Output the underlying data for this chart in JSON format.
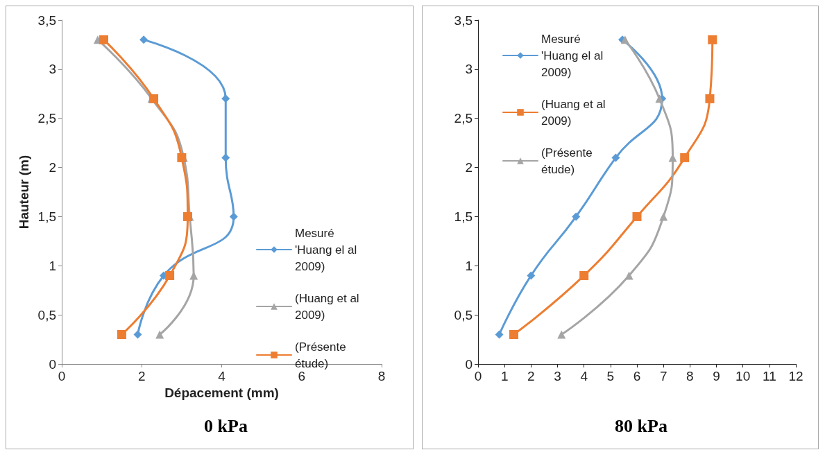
{
  "chart_data": [
    {
      "type": "line",
      "title": "0 kPa",
      "xlabel": "Dépacement (mm)",
      "ylabel": "Hauteur (m)",
      "xlim": [
        0,
        8
      ],
      "xticks": [
        0,
        2,
        4,
        6,
        8
      ],
      "ylim": [
        0,
        3.5
      ],
      "yticks": [
        0,
        {
          "value": 0.5,
          "label": "0,5"
        },
        1,
        {
          "value": 1.5,
          "label": "1,5"
        },
        2,
        {
          "value": 2.5,
          "label": "2,5"
        },
        3,
        {
          "value": 3.5,
          "label": "3,5"
        }
      ],
      "grid": false,
      "legend": "right",
      "series": [
        {
          "name": "Mesuré 'Huang el al 2009)",
          "color": "#5b9bd5",
          "marker": "diamond",
          "x": [
            2.05,
            4.1,
            4.1,
            4.3,
            2.55,
            1.9
          ],
          "values": [
            3.3,
            2.7,
            2.1,
            1.5,
            0.9,
            0.3
          ]
        },
        {
          "name": "(Huang et al 2009)",
          "color": "#a5a5a5",
          "marker": "triangle",
          "x": [
            0.9,
            2.25,
            3.05,
            3.2,
            3.3,
            2.45
          ],
          "values": [
            3.3,
            2.7,
            2.1,
            1.5,
            0.9,
            0.3
          ]
        },
        {
          "name": "(Présente étude)",
          "color": "#ed7d31",
          "marker": "square",
          "x": [
            1.05,
            2.3,
            3.0,
            3.15,
            2.7,
            1.5
          ],
          "values": [
            3.3,
            2.7,
            2.1,
            1.5,
            0.9,
            0.3
          ]
        }
      ]
    },
    {
      "type": "line",
      "title": "80 kPa",
      "xlim": [
        0,
        12
      ],
      "xticks": [
        0,
        1,
        2,
        3,
        4,
        5,
        6,
        7,
        8,
        9,
        10,
        11,
        12
      ],
      "ylim": [
        0,
        3.5
      ],
      "yticks": [
        0,
        {
          "value": 0.5,
          "label": "0,5"
        },
        1,
        {
          "value": 1.5,
          "label": "1,5"
        },
        2,
        {
          "value": 2.5,
          "label": "2,5"
        },
        3,
        {
          "value": 3.5,
          "label": "3,5"
        }
      ],
      "grid": false,
      "legend": "top left",
      "series": [
        {
          "name": "Mesuré 'Huang el al 2009)",
          "color": "#5b9bd5",
          "marker": "diamond",
          "x": [
            0.8,
            2.0,
            3.7,
            5.2,
            6.95,
            5.45
          ],
          "values": [
            0.3,
            0.9,
            1.5,
            2.1,
            2.7,
            3.3
          ]
        },
        {
          "name": "(Huang et al 2009)",
          "color": "#ed7d31",
          "marker": "square",
          "x": [
            1.35,
            4.0,
            6.0,
            7.8,
            8.75,
            8.85
          ],
          "values": [
            0.3,
            0.9,
            1.5,
            2.1,
            2.7,
            3.3
          ]
        },
        {
          "name": "(Présente étude)",
          "color": "#a5a5a5",
          "marker": "triangle",
          "x": [
            3.15,
            5.7,
            7.0,
            7.35,
            6.85,
            5.55
          ],
          "values": [
            0.3,
            0.9,
            1.5,
            2.1,
            2.7,
            3.3
          ]
        }
      ]
    }
  ]
}
